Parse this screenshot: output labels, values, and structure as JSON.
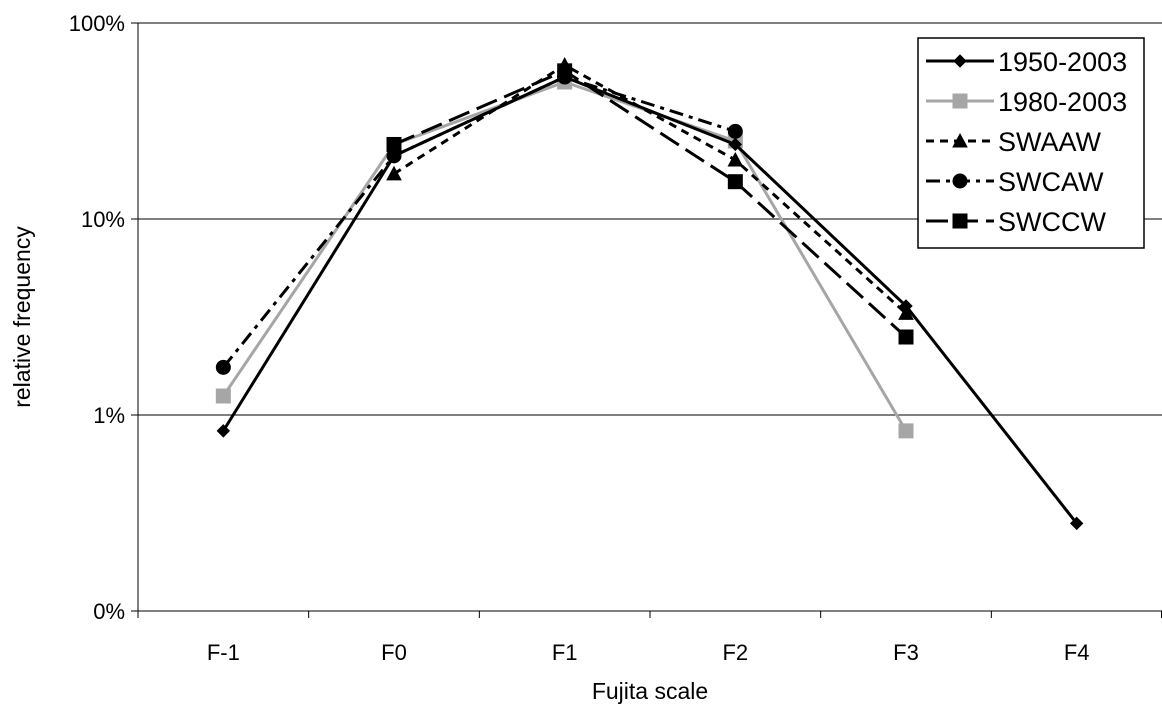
{
  "chart_data": {
    "type": "line",
    "title": "",
    "xlabel": "Fujita scale",
    "ylabel": "relative frequency",
    "y_scale": "log",
    "ylim": [
      0.001,
      1
    ],
    "y_ticks": [
      {
        "value": 1,
        "label": "100%"
      },
      {
        "value": 0.1,
        "label": "10%"
      },
      {
        "value": 0.01,
        "label": "1%"
      },
      {
        "value": 0.001,
        "label": "0%"
      }
    ],
    "grid": true,
    "legend_position": "top-right",
    "categories": [
      "F-1",
      "F0",
      "F1",
      "F2",
      "F3",
      "F4"
    ],
    "series": [
      {
        "name": "1950-2003",
        "color": "#000000",
        "line": "solid",
        "marker": "diamond",
        "values": [
          0.0083,
          0.21,
          0.53,
          0.24,
          0.036,
          0.0028
        ]
      },
      {
        "name": "1980-2003",
        "color": "#a6a6a6",
        "line": "solid",
        "marker": "square",
        "values": [
          0.0125,
          0.24,
          0.5,
          0.25,
          0.0083,
          null
        ]
      },
      {
        "name": "SWAAW",
        "color": "#000000",
        "line": "short-dash",
        "marker": "triangle",
        "values": [
          null,
          0.17,
          0.61,
          0.2,
          0.033,
          null
        ]
      },
      {
        "name": "SWCAW",
        "color": "#000000",
        "line": "dash-dot",
        "marker": "circle",
        "values": [
          0.0175,
          0.21,
          0.53,
          0.28,
          null,
          null
        ]
      },
      {
        "name": "SWCCW",
        "color": "#000000",
        "line": "long-dash",
        "marker": "square",
        "values": [
          null,
          0.24,
          0.57,
          0.155,
          0.025,
          null
        ]
      }
    ]
  }
}
